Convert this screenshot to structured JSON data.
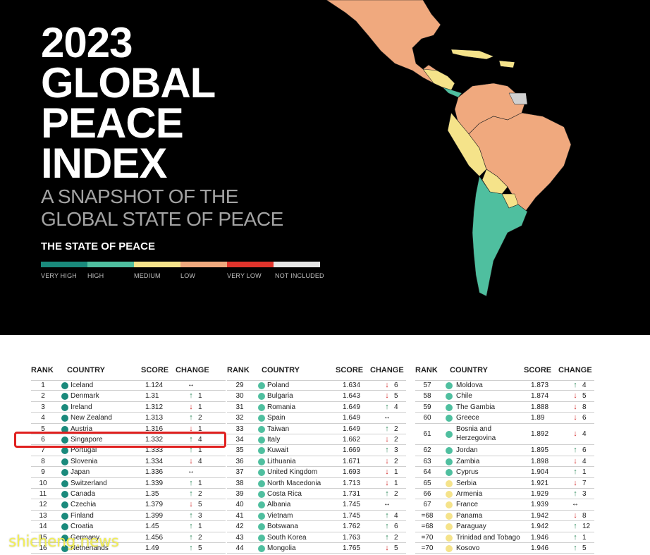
{
  "header": {
    "title_lines": [
      "2023",
      "GLOBAL",
      "PEACE",
      "INDEX"
    ],
    "subtitle_lines": [
      "A SNAPSHOT OF THE",
      "GLOBAL STATE OF PEACE"
    ],
    "state_of_peace_title": "THE STATE OF PEACE",
    "legend": [
      {
        "label": "VERY HIGH",
        "color": "#1a8a7c"
      },
      {
        "label": "HIGH",
        "color": "#4fbf9f"
      },
      {
        "label": "MEDIUM",
        "color": "#f5e38a"
      },
      {
        "label": "LOW",
        "color": "#f0a97e"
      },
      {
        "label": "VERY LOW",
        "color": "#e0342c"
      },
      {
        "label": "NOT INCLUDED",
        "color": "#e6e6e6"
      }
    ],
    "map_colors": {
      "high": "#4fbf9f",
      "medium": "#f5e38a",
      "low": "#f0a97e",
      "not_included": "#d0d0d0"
    }
  },
  "table": {
    "headers": {
      "rank": "RANK",
      "country": "COUNTRY",
      "score": "SCORE",
      "change": "CHANGE"
    },
    "dot_colors": {
      "vh": "#1a8a7c",
      "h": "#4fbf9f",
      "m": "#f5e38a"
    },
    "columns": [
      [
        {
          "rank": "1",
          "country": "Iceland",
          "score": "1.124",
          "dir": "flat",
          "chg": "",
          "dot": "vh"
        },
        {
          "rank": "2",
          "country": "Denmark",
          "score": "1.31",
          "dir": "up",
          "chg": "1",
          "dot": "vh"
        },
        {
          "rank": "3",
          "country": "Ireland",
          "score": "1.312",
          "dir": "down",
          "chg": "1",
          "dot": "vh"
        },
        {
          "rank": "4",
          "country": "New Zealand",
          "score": "1.313",
          "dir": "up",
          "chg": "2",
          "dot": "vh"
        },
        {
          "rank": "5",
          "country": "Austria",
          "score": "1.316",
          "dir": "down",
          "chg": "1",
          "dot": "vh"
        },
        {
          "rank": "6",
          "country": "Singapore",
          "score": "1.332",
          "dir": "up",
          "chg": "4",
          "dot": "vh"
        },
        {
          "rank": "7",
          "country": "Portugal",
          "score": "1.333",
          "dir": "up",
          "chg": "1",
          "dot": "vh"
        },
        {
          "rank": "8",
          "country": "Slovenia",
          "score": "1.334",
          "dir": "down",
          "chg": "4",
          "dot": "vh"
        },
        {
          "rank": "9",
          "country": "Japan",
          "score": "1.336",
          "dir": "flat",
          "chg": "",
          "dot": "vh"
        },
        {
          "rank": "10",
          "country": "Switzerland",
          "score": "1.339",
          "dir": "up",
          "chg": "1",
          "dot": "vh"
        },
        {
          "rank": "11",
          "country": "Canada",
          "score": "1.35",
          "dir": "up",
          "chg": "2",
          "dot": "vh"
        },
        {
          "rank": "12",
          "country": "Czechia",
          "score": "1.379",
          "dir": "down",
          "chg": "5",
          "dot": "vh"
        },
        {
          "rank": "13",
          "country": "Finland",
          "score": "1.399",
          "dir": "up",
          "chg": "3",
          "dot": "vh"
        },
        {
          "rank": "14",
          "country": "Croatia",
          "score": "1.45",
          "dir": "up",
          "chg": "1",
          "dot": "vh"
        },
        {
          "rank": "15",
          "country": "Germany",
          "score": "1.456",
          "dir": "up",
          "chg": "2",
          "dot": "vh"
        },
        {
          "rank": "16",
          "country": "Netherlands",
          "score": "1.49",
          "dir": "up",
          "chg": "5",
          "dot": "vh"
        }
      ],
      [
        {
          "rank": "29",
          "country": "Poland",
          "score": "1.634",
          "dir": "down",
          "chg": "6",
          "dot": "h"
        },
        {
          "rank": "30",
          "country": "Bulgaria",
          "score": "1.643",
          "dir": "down",
          "chg": "5",
          "dot": "h"
        },
        {
          "rank": "31",
          "country": "Romania",
          "score": "1.649",
          "dir": "up",
          "chg": "4",
          "dot": "h"
        },
        {
          "rank": "32",
          "country": "Spain",
          "score": "1.649",
          "dir": "flat",
          "chg": "",
          "dot": "h"
        },
        {
          "rank": "33",
          "country": "Taiwan",
          "score": "1.649",
          "dir": "up",
          "chg": "2",
          "dot": "h"
        },
        {
          "rank": "34",
          "country": "Italy",
          "score": "1.662",
          "dir": "down",
          "chg": "2",
          "dot": "h"
        },
        {
          "rank": "35",
          "country": "Kuwait",
          "score": "1.669",
          "dir": "up",
          "chg": "3",
          "dot": "h"
        },
        {
          "rank": "36",
          "country": "Lithuania",
          "score": "1.671",
          "dir": "down",
          "chg": "2",
          "dot": "h"
        },
        {
          "rank": "37",
          "country": "United Kingdom",
          "score": "1.693",
          "dir": "down",
          "chg": "1",
          "dot": "h"
        },
        {
          "rank": "38",
          "country": "North Macedonia",
          "score": "1.713",
          "dir": "down",
          "chg": "1",
          "dot": "h"
        },
        {
          "rank": "39",
          "country": "Costa Rica",
          "score": "1.731",
          "dir": "up",
          "chg": "2",
          "dot": "h"
        },
        {
          "rank": "40",
          "country": "Albania",
          "score": "1.745",
          "dir": "flat",
          "chg": "",
          "dot": "h"
        },
        {
          "rank": "41",
          "country": "Vietnam",
          "score": "1.745",
          "dir": "up",
          "chg": "4",
          "dot": "h"
        },
        {
          "rank": "42",
          "country": "Botswana",
          "score": "1.762",
          "dir": "up",
          "chg": "6",
          "dot": "h"
        },
        {
          "rank": "43",
          "country": "South Korea",
          "score": "1.763",
          "dir": "up",
          "chg": "2",
          "dot": "h"
        },
        {
          "rank": "44",
          "country": "Mongolia",
          "score": "1.765",
          "dir": "down",
          "chg": "5",
          "dot": "h"
        }
      ],
      [
        {
          "rank": "57",
          "country": "Moldova",
          "score": "1.873",
          "dir": "up",
          "chg": "4",
          "dot": "h"
        },
        {
          "rank": "58",
          "country": "Chile",
          "score": "1.874",
          "dir": "down",
          "chg": "5",
          "dot": "h"
        },
        {
          "rank": "59",
          "country": "The Gambia",
          "score": "1.888",
          "dir": "down",
          "chg": "8",
          "dot": "h"
        },
        {
          "rank": "60",
          "country": "Greece",
          "score": "1.89",
          "dir": "down",
          "chg": "6",
          "dot": "h"
        },
        {
          "rank": "61",
          "country": "Bosnia and",
          "country2": "Herzegovina",
          "score": "1.892",
          "dir": "down",
          "chg": "4",
          "dot": "h"
        },
        {
          "rank": "62",
          "country": "Jordan",
          "score": "1.895",
          "dir": "up",
          "chg": "6",
          "dot": "h"
        },
        {
          "rank": "63",
          "country": "Zambia",
          "score": "1.898",
          "dir": "down",
          "chg": "4",
          "dot": "h"
        },
        {
          "rank": "64",
          "country": "Cyprus",
          "score": "1.904",
          "dir": "up",
          "chg": "1",
          "dot": "h"
        },
        {
          "rank": "65",
          "country": "Serbia",
          "score": "1.921",
          "dir": "down",
          "chg": "7",
          "dot": "m"
        },
        {
          "rank": "66",
          "country": "Armenia",
          "score": "1.929",
          "dir": "up",
          "chg": "3",
          "dot": "m"
        },
        {
          "rank": "67",
          "country": "France",
          "score": "1.939",
          "dir": "flat",
          "chg": "",
          "dot": "m"
        },
        {
          "rank": "=68",
          "country": "Panama",
          "score": "1.942",
          "dir": "down",
          "chg": "8",
          "dot": "m"
        },
        {
          "rank": "=68",
          "country": "Paraguay",
          "score": "1.942",
          "dir": "up",
          "chg": "12",
          "dot": "m"
        },
        {
          "rank": "=70",
          "country": "Trinidad and Tobago",
          "score": "1.946",
          "dir": "up",
          "chg": "1",
          "dot": "m"
        },
        {
          "rank": "=70",
          "country": "Kosovo",
          "score": "1.946",
          "dir": "up",
          "chg": "5",
          "dot": "m"
        }
      ]
    ]
  },
  "watermark": "shicheng.news"
}
